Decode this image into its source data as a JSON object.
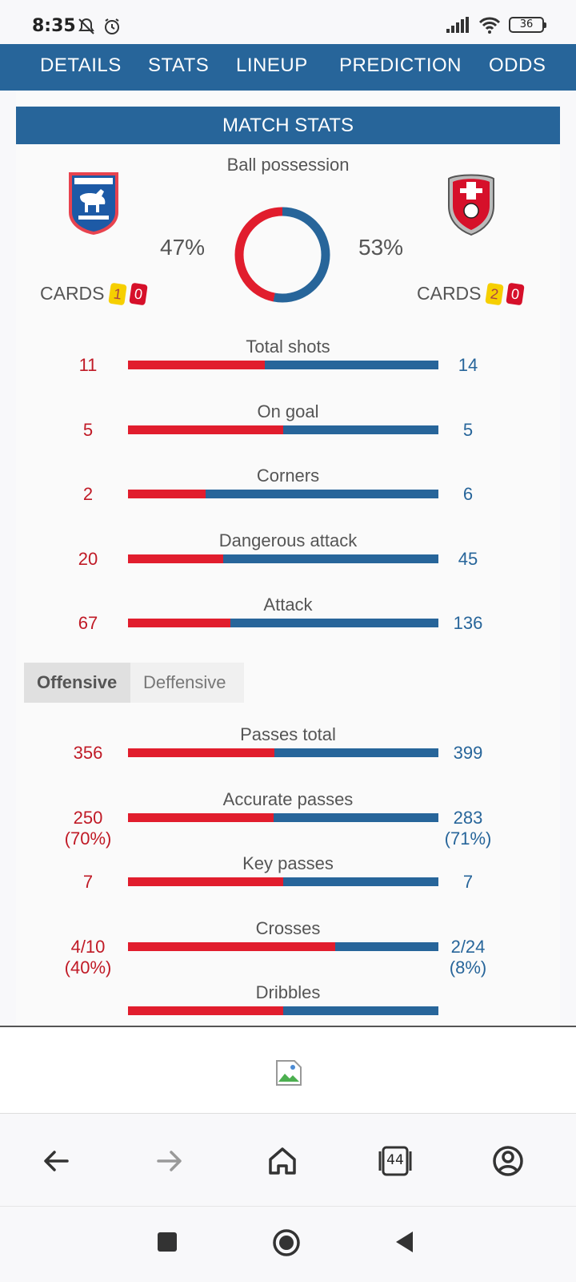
{
  "status_bar": {
    "time": "8:35",
    "battery": "36"
  },
  "tabs": [
    "DETAILS",
    "STATS",
    "LINEUP",
    "PREDICTION",
    "ODDS"
  ],
  "section_title": "MATCH STATS",
  "possession": {
    "label": "Ball possession",
    "home_pct": "47%",
    "away_pct": "53%",
    "home_value": 47,
    "away_value": 53,
    "home_color": "#e11d2d",
    "away_color": "#27659a"
  },
  "cards": {
    "label": "CARDS",
    "home_yellow": "1",
    "home_red": "0",
    "away_yellow": "2",
    "away_red": "0"
  },
  "main_stats": [
    {
      "label": "Total shots",
      "home": "11",
      "away": "14",
      "home_value": 11,
      "away_value": 14
    },
    {
      "label": "On goal",
      "home": "5",
      "away": "5",
      "home_value": 5,
      "away_value": 5
    },
    {
      "label": "Corners",
      "home": "2",
      "away": "6",
      "home_value": 2,
      "away_value": 6
    },
    {
      "label": "Dangerous attack",
      "home": "20",
      "away": "45",
      "home_value": 20,
      "away_value": 45
    },
    {
      "label": "Attack",
      "home": "67",
      "away": "136",
      "home_value": 67,
      "away_value": 136
    }
  ],
  "toggle": {
    "active": "Offensive",
    "inactive": "Deffensive"
  },
  "offensive_stats": [
    {
      "label": "Passes total",
      "home": "356",
      "away": "399",
      "home_value": 356,
      "away_value": 399
    },
    {
      "label": "Accurate passes",
      "home": "250",
      "home_sub": "(70%)",
      "away": "283",
      "away_sub": "(71%)",
      "home_value": 250,
      "away_value": 283
    },
    {
      "label": "Key passes",
      "home": "7",
      "away": "7",
      "home_value": 7,
      "away_value": 7
    },
    {
      "label": "Crosses",
      "home": "4/10",
      "home_sub": "(40%)",
      "away": "2/24",
      "away_sub": "(8%)",
      "home_value": 4,
      "away_value": 2
    },
    {
      "label": "Dribbles",
      "home": "",
      "away": "",
      "home_value": 0,
      "away_value": 0
    }
  ],
  "browser_bar": {
    "tab_count": "44"
  },
  "colors": {
    "primary": "#27659a",
    "home": "#e11d2d",
    "home_text": "#c01a26"
  }
}
